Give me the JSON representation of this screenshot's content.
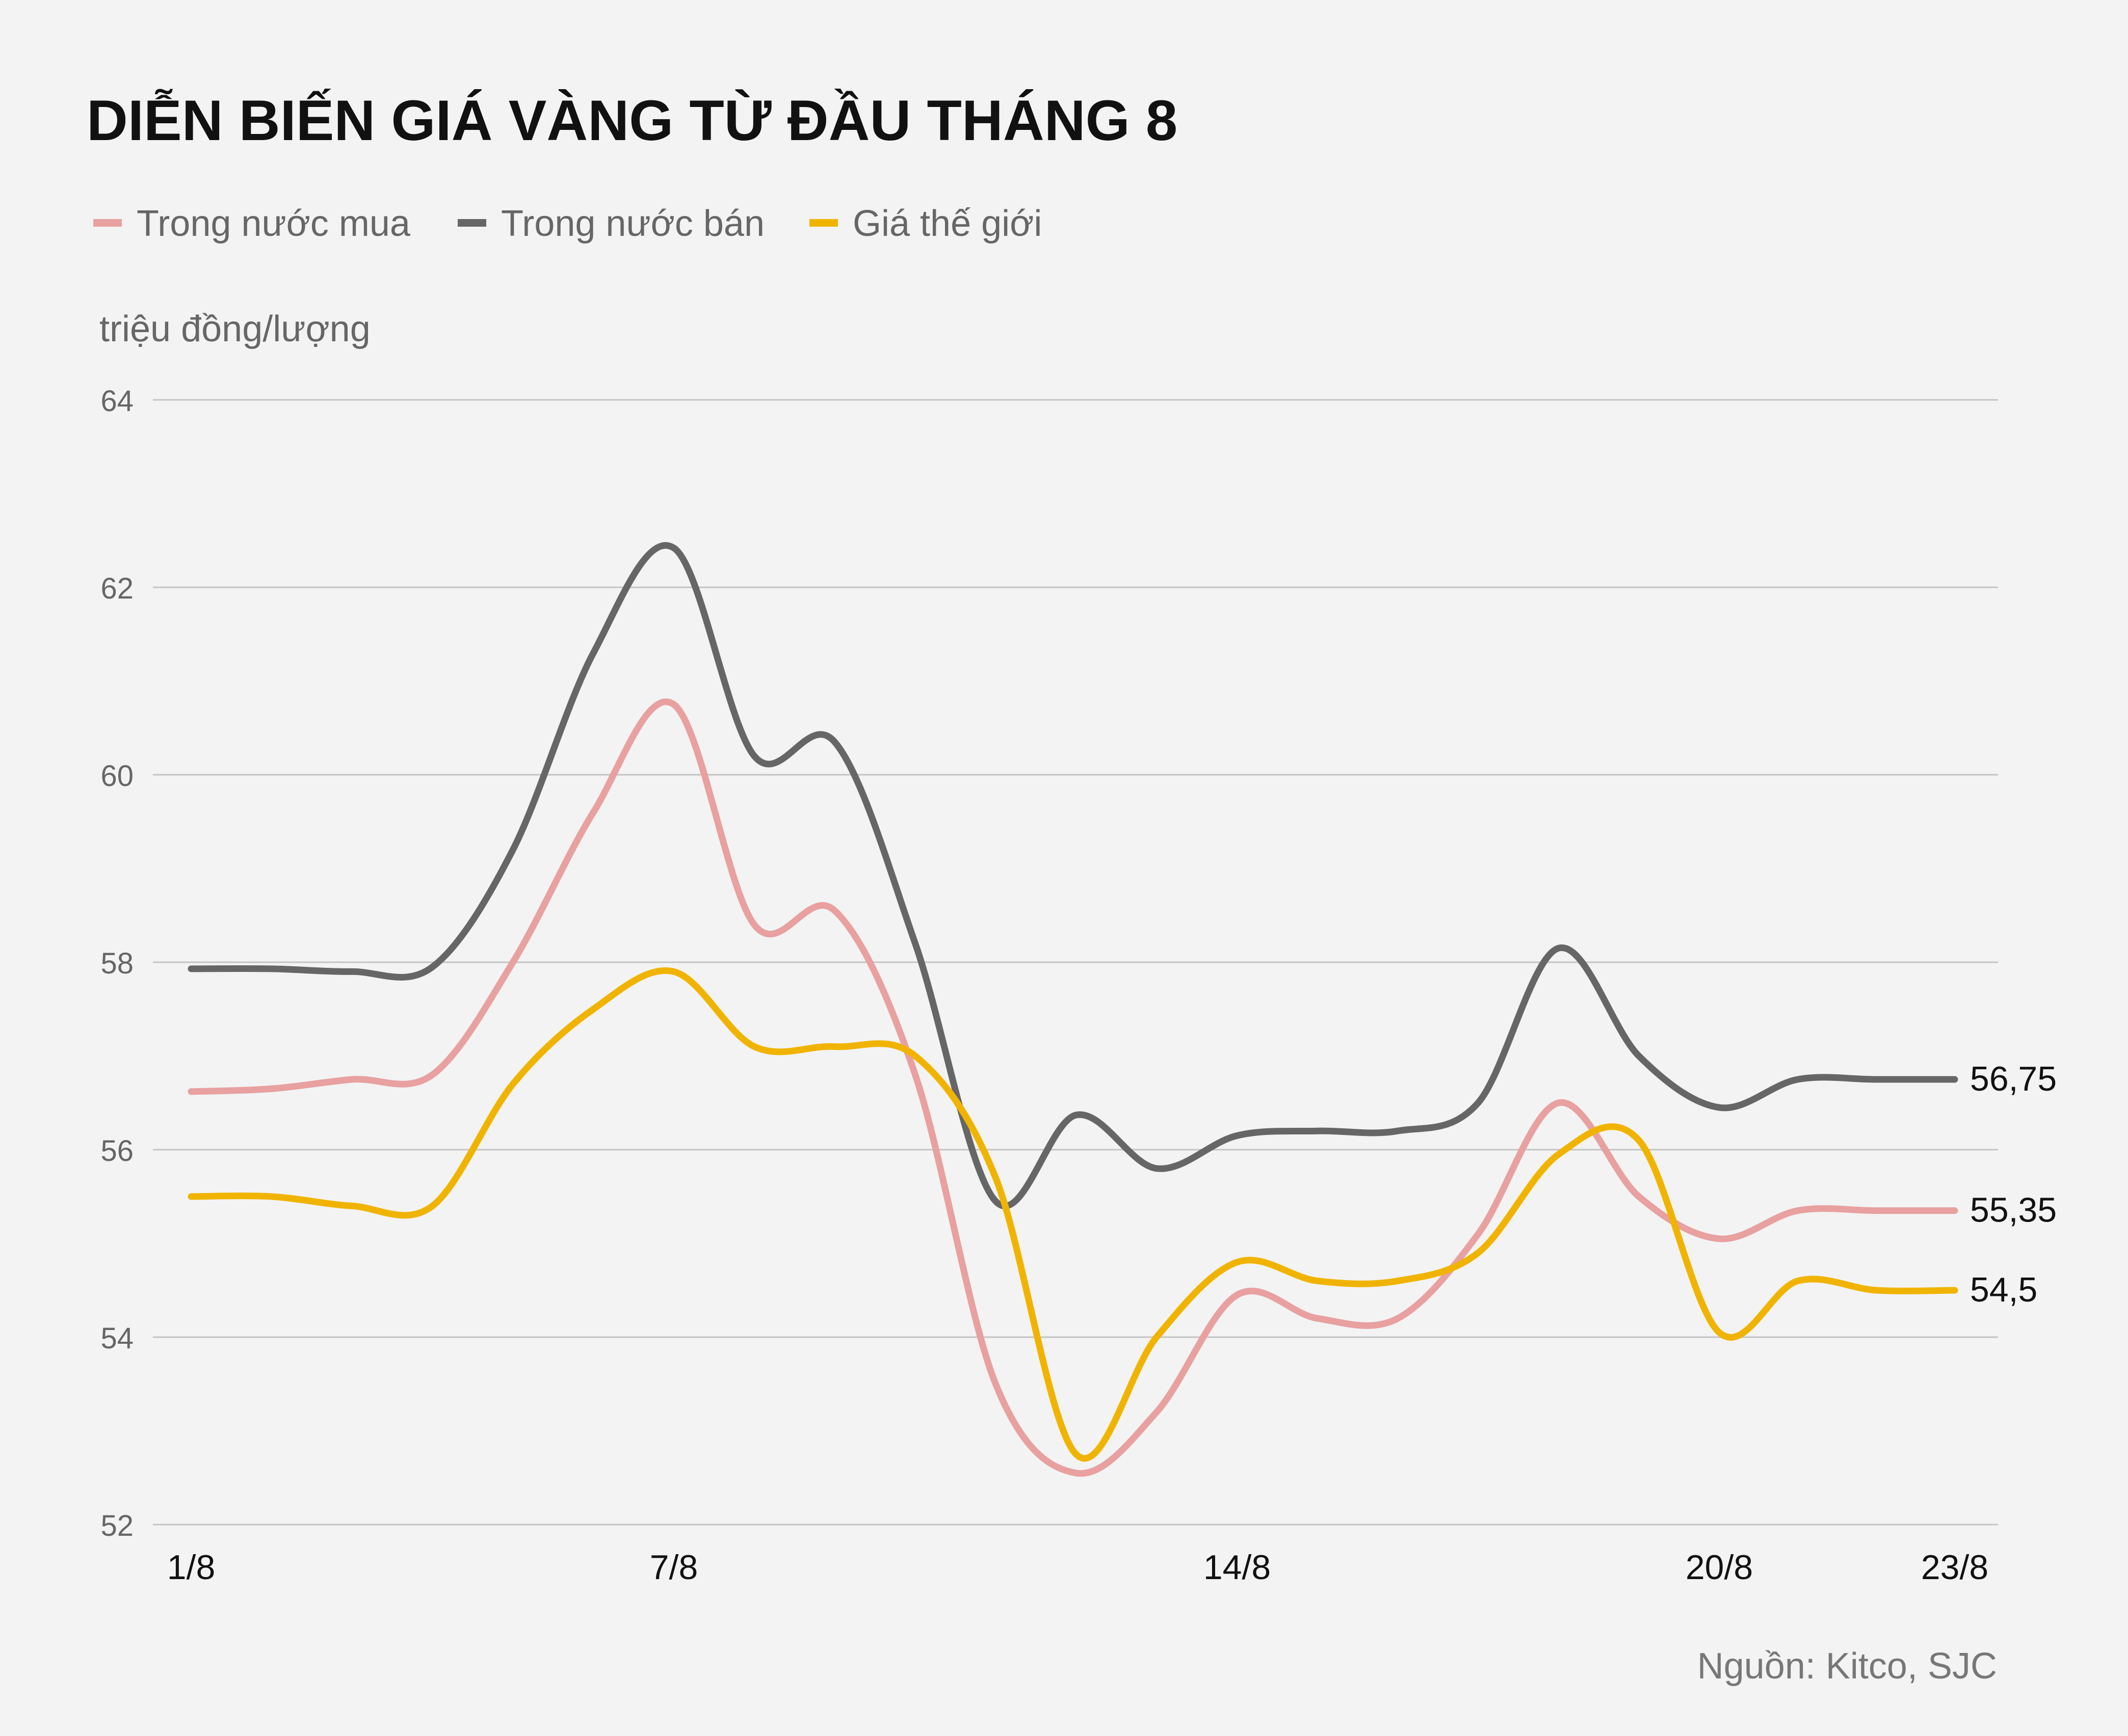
{
  "chart_data": {
    "type": "line",
    "title": "DIỄN BIẾN GIÁ VÀNG TỪ ĐẦU THÁNG 8",
    "ylabel": "triệu đồng/lượng",
    "source": "Nguồn: Kitco, SJC",
    "ylim": [
      52,
      64
    ],
    "yticks": [
      "52",
      "54",
      "56",
      "58",
      "60",
      "62",
      "64"
    ],
    "xlim": [
      1,
      23
    ],
    "xticks": [
      {
        "x": 1,
        "label": "1/8"
      },
      {
        "x": 7,
        "label": "7/8"
      },
      {
        "x": 14,
        "label": "14/8"
      },
      {
        "x": 20,
        "label": "20/8"
      },
      {
        "x": 23,
        "label": "23/8"
      }
    ],
    "grid": true,
    "legend_position": "top-left",
    "series": [
      {
        "name": "Trong nước mua",
        "color": "#e8a0a0",
        "x": [
          1,
          2,
          3,
          4,
          5,
          6,
          7,
          8,
          9,
          10,
          11,
          12,
          13,
          14,
          15,
          16,
          17,
          18,
          19,
          20,
          21,
          22,
          23
        ],
        "y": [
          56.62,
          56.65,
          56.75,
          56.8,
          58.0,
          59.6,
          60.75,
          58.4,
          58.55,
          56.8,
          53.5,
          52.55,
          53.2,
          54.45,
          54.2,
          54.2,
          55.1,
          56.5,
          55.5,
          55.05,
          55.35,
          55.35,
          55.35
        ],
        "end_label": "55,35"
      },
      {
        "name": "Trong nước bán",
        "color": "#666666",
        "x": [
          1,
          2,
          3,
          4,
          5,
          6,
          7,
          8,
          9,
          10,
          11,
          12,
          13,
          14,
          15,
          16,
          17,
          18,
          19,
          20,
          21,
          22,
          23
        ],
        "y": [
          57.93,
          57.93,
          57.9,
          57.95,
          59.2,
          61.3,
          62.42,
          60.2,
          60.35,
          58.2,
          55.45,
          56.37,
          55.8,
          56.15,
          56.2,
          56.2,
          56.5,
          58.15,
          57.0,
          56.45,
          56.75,
          56.75,
          56.75
        ],
        "end_label": "56,75"
      },
      {
        "name": "Giá thế giới",
        "color": "#f0b400",
        "x": [
          1,
          2,
          3,
          4,
          5,
          6,
          7,
          8,
          9,
          10,
          11,
          12,
          13,
          14,
          15,
          16,
          17,
          18,
          19,
          20,
          21,
          22,
          23
        ],
        "y": [
          55.5,
          55.5,
          55.4,
          55.4,
          56.7,
          57.5,
          57.9,
          57.1,
          57.1,
          57.0,
          55.7,
          52.75,
          54.0,
          54.8,
          54.6,
          54.6,
          54.9,
          55.95,
          56.1,
          54.05,
          54.6,
          54.5,
          54.5
        ],
        "end_label": "54,5"
      }
    ]
  }
}
